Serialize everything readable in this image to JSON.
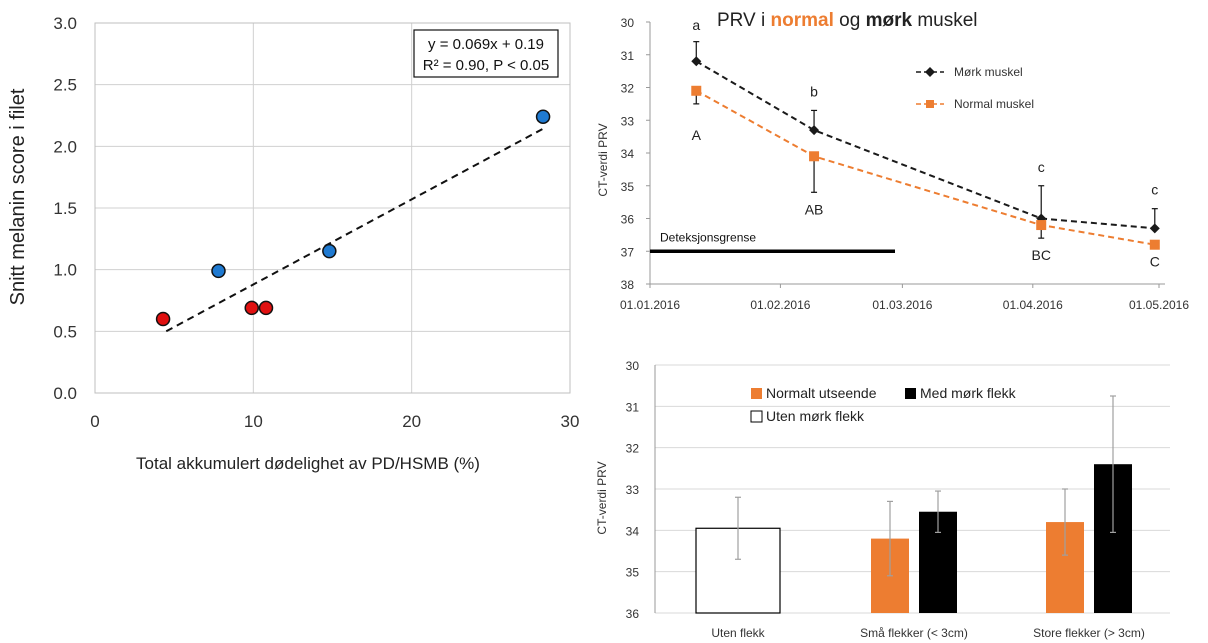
{
  "chart_data": [
    {
      "type": "scatter",
      "title": "",
      "xlabel": "Total akkumulert dødelighet av PD/HSMB (%)",
      "ylabel": "Snitt melanin score i filet",
      "xlim": [
        0,
        30
      ],
      "ylim": [
        0.0,
        3.0
      ],
      "x_ticks": [
        "0",
        "10",
        "20",
        "30"
      ],
      "y_ticks": [
        "0.0",
        "0.5",
        "1.0",
        "1.5",
        "2.0",
        "2.5",
        "3.0"
      ],
      "grid": true,
      "series": [
        {
          "color": "#1f7ad1",
          "points": [
            {
              "x": 7.8,
              "y": 0.99
            },
            {
              "x": 14.8,
              "y": 1.15
            },
            {
              "x": 28.3,
              "y": 2.24
            }
          ]
        },
        {
          "color": "#e01010",
          "points": [
            {
              "x": 4.3,
              "y": 0.6
            },
            {
              "x": 9.9,
              "y": 0.69
            },
            {
              "x": 10.8,
              "y": 0.69
            }
          ]
        }
      ],
      "trendline": {
        "x_start": 4.5,
        "x_end": 28.3,
        "slope": 0.069,
        "intercept": 0.19
      },
      "annotation": {
        "line1": "y = 0.069x + 0.19",
        "line2": "R² = 0.90, P < 0.05"
      }
    },
    {
      "type": "line",
      "title": {
        "part1": "PRV i ",
        "part2": "normal",
        "part3": " og ",
        "part4": "mørk",
        "part5": " muskel"
      },
      "title_colors": {
        "normal": "#ed7d31"
      },
      "xlabel": "",
      "ylabel": "CT-verdi PRV",
      "ylim": [
        30,
        38
      ],
      "y_inverted": true,
      "y_ticks": [
        "30",
        "31",
        "32",
        "33",
        "34",
        "35",
        "36",
        "37",
        "38"
      ],
      "x_ticks": [
        "01.01.2016",
        "01.02.2016",
        "01.03.2016",
        "01.04.2016",
        "01.05.2016"
      ],
      "x_tick_days": [
        0,
        31,
        60,
        91,
        121
      ],
      "series": [
        {
          "name": "Mørk muskel",
          "color": "#1a1a1a",
          "marker": "diamond",
          "points": [
            {
              "x": "2016-01-12",
              "y": 31.2,
              "err": 0.6
            },
            {
              "x": "2016-02-09",
              "y": 33.3,
              "err": 0.6
            },
            {
              "x": "2016-04-03",
              "y": 36.0,
              "err": 1.0
            },
            {
              "x": "2016-04-30",
              "y": 36.3,
              "err": 0.6
            }
          ],
          "labels": [
            "a",
            "b",
            "c",
            "c"
          ]
        },
        {
          "name": "Normal muskel",
          "color": "#ed7d31",
          "marker": "square",
          "points": [
            {
              "x": "2016-01-12",
              "y": 32.1,
              "err": 0.4
            },
            {
              "x": "2016-02-09",
              "y": 34.1,
              "err": 1.1
            },
            {
              "x": "2016-04-03",
              "y": 36.2,
              "err": 0.4
            },
            {
              "x": "2016-04-30",
              "y": 36.8,
              "err": 0.0
            }
          ],
          "labels": [
            "A",
            "AB",
            "BC",
            "C"
          ]
        }
      ],
      "x_days": [
        11,
        39,
        93,
        120
      ],
      "detection_limit": {
        "label": "Deteksjonsgrense",
        "value": 37.0
      }
    },
    {
      "type": "bar",
      "title": "",
      "ylabel": "CT-verdi PRV",
      "ylim": [
        30,
        36
      ],
      "y_inverted": true,
      "y_ticks": [
        "30",
        "31",
        "32",
        "33",
        "34",
        "35",
        "36"
      ],
      "categories": [
        "Uten flekk",
        "Små flekker (< 3cm)",
        "Store flekker (> 3cm)"
      ],
      "series": [
        {
          "name": "Uten mørk flekk",
          "color": "#ffffff",
          "values": [
            33.95,
            null,
            null
          ],
          "errors": [
            0.75,
            null,
            null
          ]
        },
        {
          "name": "Normalt utseende",
          "color": "#ed7d31",
          "values": [
            null,
            34.2,
            33.8
          ],
          "errors": [
            null,
            0.9,
            0.8
          ]
        },
        {
          "name": "Med mørk flekk",
          "color": "#000000",
          "values": [
            null,
            33.55,
            32.4
          ],
          "errors": [
            null,
            0.5,
            1.65
          ]
        }
      ]
    }
  ]
}
